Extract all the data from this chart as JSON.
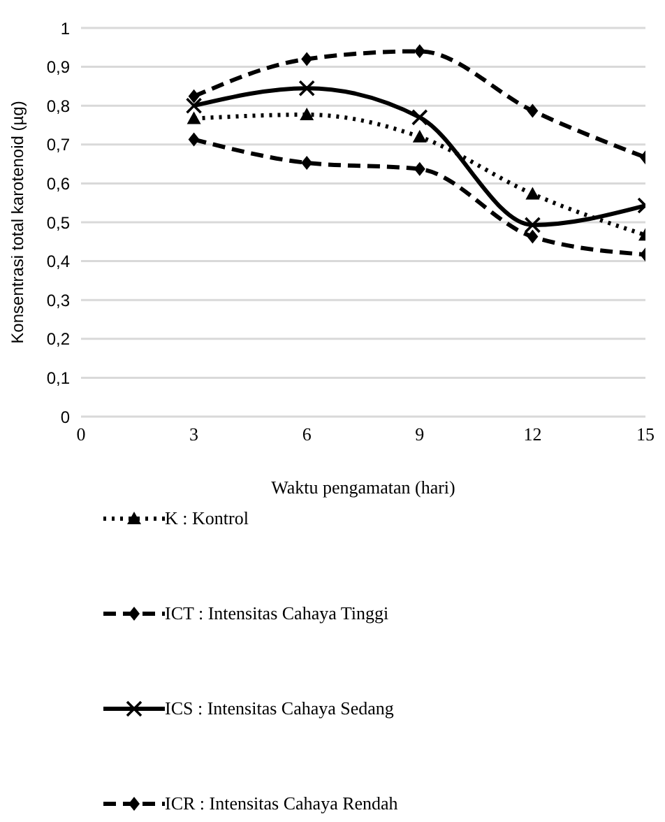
{
  "chart_data": {
    "type": "line",
    "xlabel": "Waktu pengamatan (hari)",
    "ylabel": "Konsentrasi total karotenoid (µg)",
    "x": [
      3,
      6,
      9,
      12,
      15
    ],
    "series": [
      {
        "name": "K : Kontrol",
        "color": "#000000",
        "marker": "triangle",
        "line_style": "dotted",
        "values": [
          0.767,
          0.777,
          0.72,
          0.573,
          0.467
        ]
      },
      {
        "name": "ICT : Intensitas Cahaya Tinggi",
        "color": "#000000",
        "marker": "diamond",
        "line_style": "dashed",
        "values": [
          0.824,
          0.92,
          0.94,
          0.787,
          0.667
        ]
      },
      {
        "name": "ICS : Intensitas Cahaya Sedang",
        "color": "#000000",
        "marker": "cross",
        "line_style": "solid",
        "values": [
          0.8,
          0.845,
          0.77,
          0.493,
          0.543
        ]
      },
      {
        "name": "ICR : Intensitas Cahaya Rendah",
        "color": "#000000",
        "marker": "diamond",
        "line_style": "dashed",
        "values": [
          0.713,
          0.653,
          0.637,
          0.463,
          0.417
        ]
      }
    ],
    "xlim": [
      0,
      15
    ],
    "xticks": [
      0,
      3,
      6,
      9,
      12,
      15
    ],
    "ylim": [
      0,
      1
    ],
    "yticks": [
      0,
      {
        "value": 0.1,
        "label": "0,1"
      },
      {
        "value": 0.2,
        "label": "0,2"
      },
      {
        "value": 0.3,
        "label": "0,3"
      },
      {
        "value": 0.4,
        "label": "0,4"
      },
      {
        "value": 0.5,
        "label": "0,5"
      },
      {
        "value": 0.6,
        "label": "0,6"
      },
      {
        "value": 0.7,
        "label": "0,7"
      },
      {
        "value": 0.8,
        "label": "0,8"
      },
      {
        "value": 0.9,
        "label": "0,9"
      },
      1
    ],
    "grid": "y",
    "legend": "bottom left"
  }
}
